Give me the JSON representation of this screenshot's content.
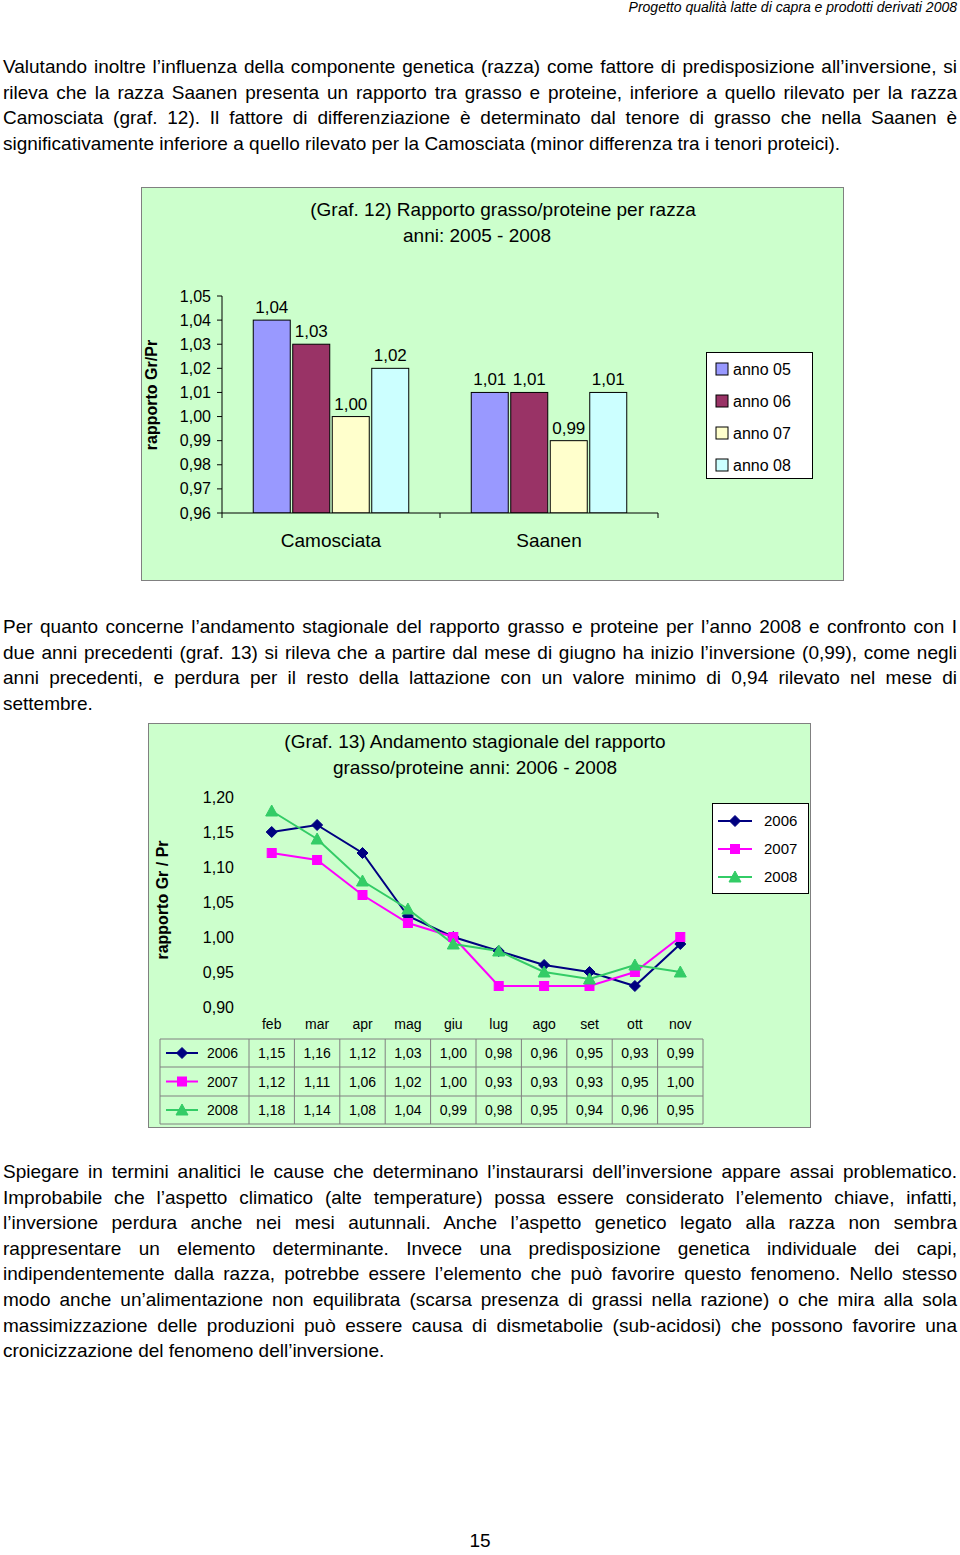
{
  "header": "Progetto qualità latte di capra e prodotti derivati 2008",
  "paragraphs": [
    "Valutando inoltre l’influenza della componente genetica (razza) come fattore di predisposizione all’inversione, si rileva che la razza Saanen presenta un rapporto tra grasso e proteine, inferiore a quello rilevato per la razza Camosciata (graf. 12). Il fattore di differenziazione è determinato dal tenore di grasso che nella Saanen è significativamente inferiore a quello rilevato per la Camosciata (minor differenza tra i tenori proteici).",
    "Per quanto concerne l’andamento stagionale del rapporto grasso e proteine per l’anno 2008 e confronto con I due anni precedenti (graf. 13) si rileva che a partire dal mese di giugno ha inizio l’inversione (0,99), come negli anni precedenti, e perdura per il resto della lattazione con un valore minimo di 0,94 rilevato nel mese di settembre.",
    "Spiegare in termini analitici le cause che determinano l’instaurarsi dell’inversione appare assai problematico. Improbabile che l’aspetto climatico (alte temperature) possa essere considerato l’elemento chiave, infatti, l’inversione perdura anche nei mesi autunnali. Anche l’aspetto genetico legato alla razza non sembra rappresentare un elemento determinante. Invece una predisposizione genetica individuale dei capi, indipendentemente dalla razza, potrebbe essere l’elemento che può favorire questo fenomeno. Nello stesso modo anche un’alimentazione non equilibrata (scarsa presenza di grassi nella razione) o che mira alla sola massimizzazione delle produzioni può essere causa di dismetabolie (sub-acidosi) che possono favorire una cronicizzazione del fenomeno dell’inversione."
  ],
  "chart_data": [
    {
      "type": "bar",
      "title": "(Graf. 12) Rapporto grasso/proteine per razza",
      "subtitle": "anni: 2005 - 2008",
      "ylabel": "rapporto Gr/Pr",
      "categories": [
        "Camosciata",
        "Saanen"
      ],
      "series": [
        {
          "name": "anno 05",
          "color": "#9999ff",
          "values": [
            1.04,
            1.01
          ],
          "value_labels": [
            "1,04",
            "1,01"
          ]
        },
        {
          "name": "anno 06",
          "color": "#993366",
          "values": [
            1.03,
            1.01
          ],
          "value_labels": [
            "1,03",
            "1,01"
          ]
        },
        {
          "name": "anno 07",
          "color": "#ffffcc",
          "values": [
            1.0,
            0.99
          ],
          "value_labels": [
            "1,00",
            "0,99"
          ]
        },
        {
          "name": "anno 08",
          "color": "#ccffff",
          "values": [
            1.02,
            1.01
          ],
          "value_labels": [
            "1,02",
            "1,01"
          ]
        }
      ],
      "ylim": [
        0.96,
        1.05
      ],
      "yticks": [
        {
          "value": 0.96,
          "label": "0,96"
        },
        {
          "value": 0.97,
          "label": "0,97"
        },
        {
          "value": 0.98,
          "label": "0,98"
        },
        {
          "value": 0.99,
          "label": "0,99"
        },
        {
          "value": 1.0,
          "label": "1,00"
        },
        {
          "value": 1.01,
          "label": "1,01"
        },
        {
          "value": 1.02,
          "label": "1,02"
        },
        {
          "value": 1.03,
          "label": "1,03"
        },
        {
          "value": 1.04,
          "label": "1,04"
        },
        {
          "value": 1.05,
          "label": "1,05"
        }
      ],
      "data_labels": true,
      "legend": "right"
    },
    {
      "type": "line",
      "title": "(Graf. 13) Andamento stagionale del rapporto",
      "subtitle": "grasso/proteine anni: 2006 - 2008",
      "ylabel": "rapporto Gr / Pr",
      "categories": [
        "feb",
        "mar",
        "apr",
        "mag",
        "giu",
        "lug",
        "ago",
        "set",
        "ott",
        "nov"
      ],
      "series": [
        {
          "name": "2006",
          "color": "#000080",
          "marker": "diamond",
          "values": [
            1.15,
            1.16,
            1.12,
            1.03,
            1.0,
            0.98,
            0.96,
            0.95,
            0.93,
            0.99
          ],
          "value_labels": [
            "1,15",
            "1,16",
            "1,12",
            "1,03",
            "1,00",
            "0,98",
            "0,96",
            "0,95",
            "0,93",
            "0,99"
          ]
        },
        {
          "name": "2007",
          "color": "#ff00ff",
          "marker": "square",
          "values": [
            1.12,
            1.11,
            1.06,
            1.02,
            1.0,
            0.93,
            0.93,
            0.93,
            0.95,
            1.0
          ],
          "value_labels": [
            "1,12",
            "1,11",
            "1,06",
            "1,02",
            "1,00",
            "0,93",
            "0,93",
            "0,93",
            "0,95",
            "1,00"
          ]
        },
        {
          "name": "2008",
          "color": "#33cc66",
          "marker": "triangle",
          "values": [
            1.18,
            1.14,
            1.08,
            1.04,
            0.99,
            0.98,
            0.95,
            0.94,
            0.96,
            0.95
          ],
          "value_labels": [
            "1,18",
            "1,14",
            "1,08",
            "1,04",
            "0,99",
            "0,98",
            "0,95",
            "0,94",
            "0,96",
            "0,95"
          ]
        }
      ],
      "ylim": [
        0.9,
        1.2
      ],
      "yticks": [
        {
          "value": 0.9,
          "label": "0,90"
        },
        {
          "value": 0.95,
          "label": "0,95"
        },
        {
          "value": 1.0,
          "label": "1,00"
        },
        {
          "value": 1.05,
          "label": "1,05"
        },
        {
          "value": 1.1,
          "label": "1,10"
        },
        {
          "value": 1.15,
          "label": "1,15"
        },
        {
          "value": 1.2,
          "label": "1,20"
        }
      ],
      "legend": "right"
    }
  ],
  "page_number": "15"
}
